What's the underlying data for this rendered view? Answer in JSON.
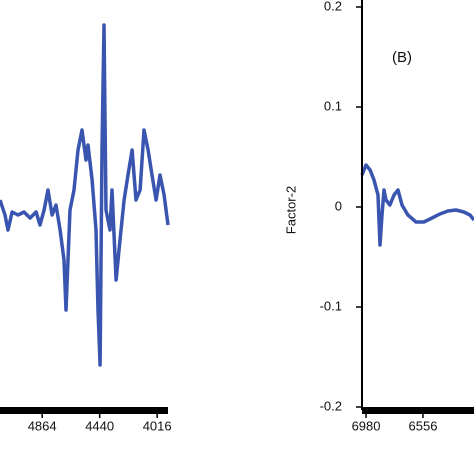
{
  "chart_data": [
    {
      "type": "line",
      "x": [
        5175,
        5138,
        5116,
        5086,
        5042,
        4998,
        4953,
        4909,
        4880,
        4850,
        4821,
        4791,
        4762,
        4732,
        4703,
        4688,
        4659,
        4629,
        4600,
        4570,
        4541,
        4526,
        4496,
        4467,
        4452,
        4437,
        4423,
        4408,
        4393,
        4364,
        4349,
        4319,
        4290,
        4260,
        4231,
        4201,
        4172,
        4142,
        4113,
        4083,
        4054,
        4024,
        3995,
        3965,
        3936
      ],
      "series": [
        {
          "color": "#3a55b0",
          "values": [
            0.007,
            -0.008,
            -0.023,
            -0.005,
            -0.008,
            -0.005,
            -0.011,
            -0.005,
            -0.018,
            -0.003,
            0.017,
            -0.008,
            0.002,
            -0.023,
            -0.053,
            -0.103,
            -0.003,
            0.017,
            0.057,
            0.077,
            0.047,
            0.062,
            0.027,
            -0.023,
            -0.103,
            -0.158,
            0.057,
            0.182,
            -0.003,
            -0.023,
            0.017,
            -0.073,
            -0.033,
            0.007,
            0.032,
            0.057,
            0.007,
            0.017,
            0.077,
            0.057,
            0.032,
            0.007,
            0.032,
            0.012,
            -0.018
          ]
        }
      ],
      "xlim": [
        5175,
        3936
      ],
      "xticks": [
        4864,
        4440,
        4016
      ],
      "ylim": [
        -0.2,
        0.2
      ]
    },
    {
      "type": "line",
      "annotation": "(B)",
      "y_label": "Factor-2",
      "x": [
        7010,
        6980,
        6950,
        6921,
        6891,
        6876,
        6861,
        6846,
        6831,
        6802,
        6772,
        6742,
        6712,
        6668,
        6608,
        6549,
        6489,
        6430,
        6370,
        6311,
        6251,
        6206,
        6176
      ],
      "series": [
        {
          "color": "#3a55b0",
          "values": [
            0.032,
            0.042,
            0.037,
            0.027,
            0.012,
            -0.038,
            -0.008,
            0.017,
            0.007,
            0.002,
            0.012,
            0.017,
            0.002,
            -0.008,
            -0.015,
            -0.015,
            -0.011,
            -0.007,
            -0.004,
            -0.003,
            -0.005,
            -0.008,
            -0.013
          ]
        }
      ],
      "xlim": [
        7010,
        6176
      ],
      "xticks": [
        6980,
        6556
      ],
      "ylim": [
        -0.2,
        0.2
      ],
      "yticks": [
        0.2,
        0.1,
        0,
        -0.1,
        -0.2
      ]
    }
  ]
}
